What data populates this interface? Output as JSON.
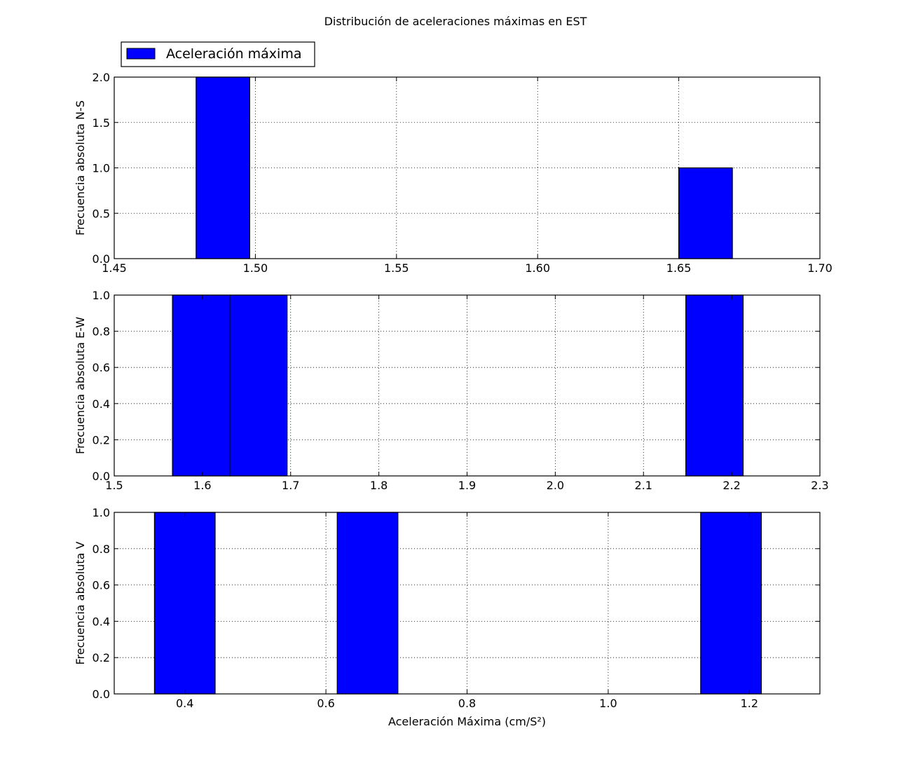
{
  "chart_data": {
    "type": "bar",
    "title": "Distribución de aceleraciones máximas en EST",
    "legend": {
      "placement": "top-left, above first subplot",
      "entries": [
        "Aceleración máxima"
      ]
    },
    "bar_color": "#0000ff",
    "grid": true,
    "subplots": [
      {
        "ylabel": "Frecuencia absoluta N-S",
        "xlabel": "",
        "xlim": [
          1.45,
          1.7
        ],
        "ylim": [
          0,
          2
        ],
        "xticks": [
          "1.45",
          "1.50",
          "1.55",
          "1.60",
          "1.65",
          "1.70"
        ],
        "yticks": [
          "0.0",
          "0.5",
          "1.0",
          "1.5",
          "2.0"
        ],
        "bins": [
          {
            "start": 1.479,
            "end": 1.498,
            "count": 2
          },
          {
            "start": 1.65,
            "end": 1.669,
            "count": 1
          }
        ]
      },
      {
        "ylabel": "Frecuencia absoluta E-W",
        "xlabel": "",
        "xlim": [
          1.5,
          2.3
        ],
        "ylim": [
          0,
          1
        ],
        "xticks": [
          "1.5",
          "1.6",
          "1.7",
          "1.8",
          "1.9",
          "2.0",
          "2.1",
          "2.2",
          "2.3"
        ],
        "yticks": [
          "0.0",
          "0.2",
          "0.4",
          "0.6",
          "0.8",
          "1.0"
        ],
        "bins": [
          {
            "start": 1.566,
            "end": 1.631,
            "count": 1
          },
          {
            "start": 1.631,
            "end": 1.696,
            "count": 1
          },
          {
            "start": 2.148,
            "end": 2.213,
            "count": 1
          }
        ]
      },
      {
        "ylabel": "Frecuencia absoluta V",
        "xlabel": "Aceleración Máxima (cm/S²)",
        "xlim": [
          0.3,
          1.3
        ],
        "ylim": [
          0,
          1
        ],
        "xticks": [
          "0.4",
          "0.6",
          "0.8",
          "1.0",
          "1.2"
        ],
        "yticks": [
          "0.0",
          "0.2",
          "0.4",
          "0.6",
          "0.8",
          "1.0"
        ],
        "bins": [
          {
            "start": 0.357,
            "end": 0.443,
            "count": 1
          },
          {
            "start": 0.616,
            "end": 0.702,
            "count": 1
          },
          {
            "start": 1.131,
            "end": 1.217,
            "count": 1
          }
        ]
      }
    ]
  }
}
